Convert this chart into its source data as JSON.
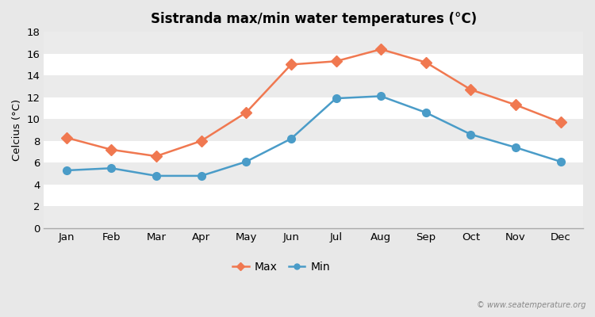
{
  "title": "Sistranda max/min water temperatures (°C)",
  "ylabel": "Celcius (°C)",
  "months": [
    "Jan",
    "Feb",
    "Mar",
    "Apr",
    "May",
    "Jun",
    "Jul",
    "Aug",
    "Sep",
    "Oct",
    "Nov",
    "Dec"
  ],
  "max_values": [
    8.3,
    7.2,
    6.6,
    8.0,
    10.6,
    15.0,
    15.3,
    16.4,
    15.2,
    12.7,
    11.3,
    9.7
  ],
  "min_values": [
    5.3,
    5.5,
    4.8,
    4.8,
    6.1,
    8.2,
    11.9,
    12.1,
    10.6,
    8.6,
    7.4,
    6.1
  ],
  "max_color": "#f07850",
  "min_color": "#4a9cc8",
  "bg_color": "#e8e8e8",
  "plot_bg_white": "#ffffff",
  "plot_bg_gray": "#ebebeb",
  "ylim": [
    0,
    18
  ],
  "yticks": [
    0,
    2,
    4,
    6,
    8,
    10,
    12,
    14,
    16,
    18
  ],
  "legend_labels": [
    "Max",
    "Min"
  ],
  "watermark": "© www.seatemperature.org"
}
